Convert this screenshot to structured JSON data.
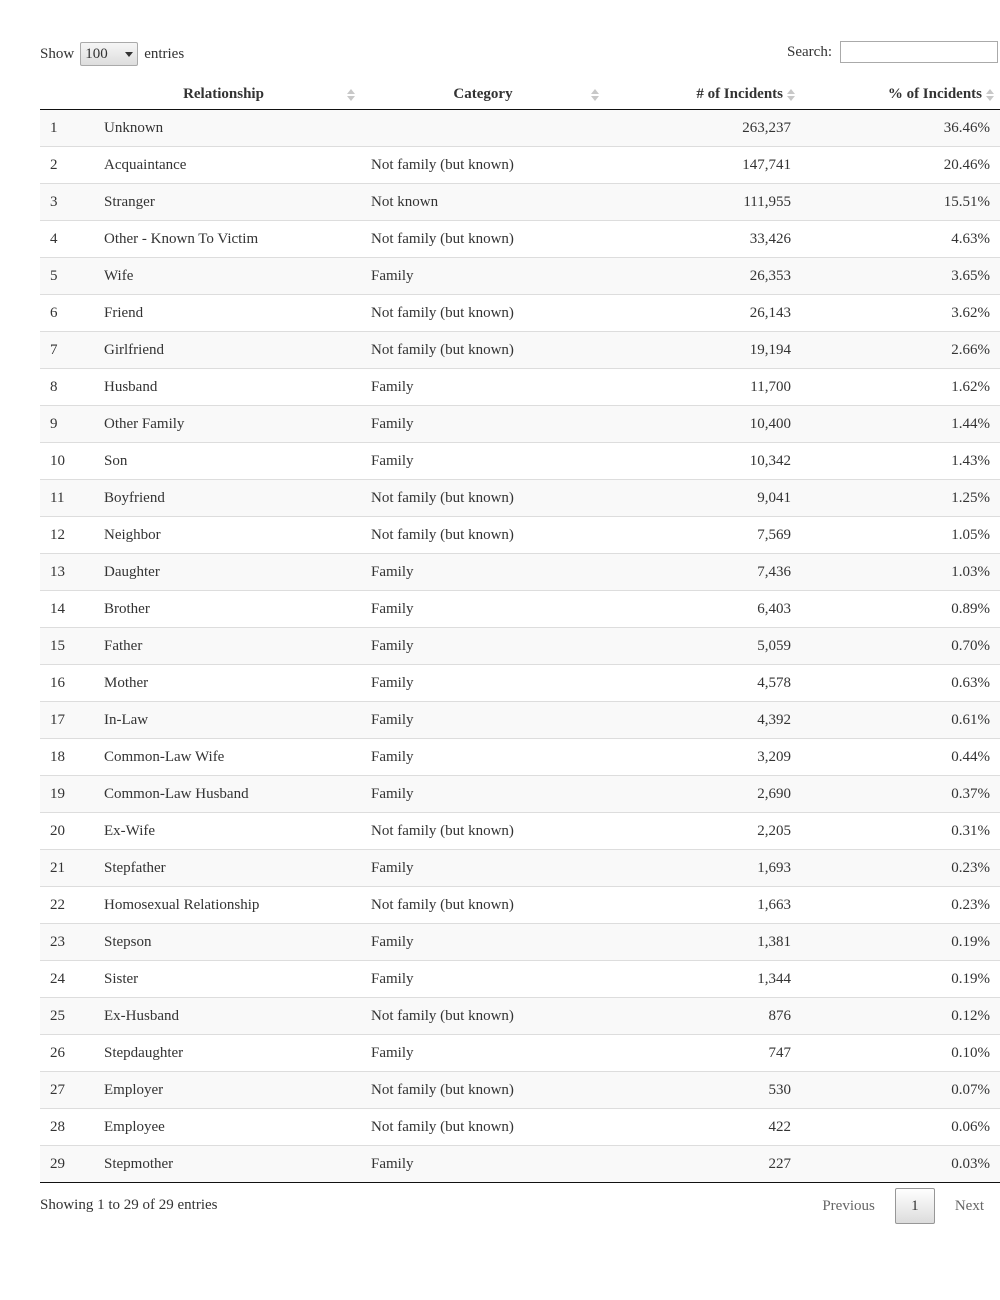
{
  "length": {
    "show_label": "Show",
    "value": "100",
    "entries_label": "entries"
  },
  "search": {
    "label": "Search:",
    "value": "",
    "placeholder": ""
  },
  "table": {
    "columns": [
      "",
      "Relationship",
      "Category",
      "# of Incidents",
      "% of Incidents"
    ],
    "rows": [
      [
        "1",
        "Unknown",
        "",
        "263,237",
        "36.46%"
      ],
      [
        "2",
        "Acquaintance",
        "Not family (but known)",
        "147,741",
        "20.46%"
      ],
      [
        "3",
        "Stranger",
        "Not known",
        "111,955",
        "15.51%"
      ],
      [
        "4",
        "Other - Known To Victim",
        "Not family (but known)",
        "33,426",
        "4.63%"
      ],
      [
        "5",
        "Wife",
        "Family",
        "26,353",
        "3.65%"
      ],
      [
        "6",
        "Friend",
        "Not family (but known)",
        "26,143",
        "3.62%"
      ],
      [
        "7",
        "Girlfriend",
        "Not family (but known)",
        "19,194",
        "2.66%"
      ],
      [
        "8",
        "Husband",
        "Family",
        "11,700",
        "1.62%"
      ],
      [
        "9",
        "Other Family",
        "Family",
        "10,400",
        "1.44%"
      ],
      [
        "10",
        "Son",
        "Family",
        "10,342",
        "1.43%"
      ],
      [
        "11",
        "Boyfriend",
        "Not family (but known)",
        "9,041",
        "1.25%"
      ],
      [
        "12",
        "Neighbor",
        "Not family (but known)",
        "7,569",
        "1.05%"
      ],
      [
        "13",
        "Daughter",
        "Family",
        "7,436",
        "1.03%"
      ],
      [
        "14",
        "Brother",
        "Family",
        "6,403",
        "0.89%"
      ],
      [
        "15",
        "Father",
        "Family",
        "5,059",
        "0.70%"
      ],
      [
        "16",
        "Mother",
        "Family",
        "4,578",
        "0.63%"
      ],
      [
        "17",
        "In-Law",
        "Family",
        "4,392",
        "0.61%"
      ],
      [
        "18",
        "Common-Law Wife",
        "Family",
        "3,209",
        "0.44%"
      ],
      [
        "19",
        "Common-Law Husband",
        "Family",
        "2,690",
        "0.37%"
      ],
      [
        "20",
        "Ex-Wife",
        "Not family (but known)",
        "2,205",
        "0.31%"
      ],
      [
        "21",
        "Stepfather",
        "Family",
        "1,693",
        "0.23%"
      ],
      [
        "22",
        "Homosexual Relationship",
        "Not family (but known)",
        "1,663",
        "0.23%"
      ],
      [
        "23",
        "Stepson",
        "Family",
        "1,381",
        "0.19%"
      ],
      [
        "24",
        "Sister",
        "Family",
        "1,344",
        "0.19%"
      ],
      [
        "25",
        "Ex-Husband",
        "Not family (but known)",
        "876",
        "0.12%"
      ],
      [
        "26",
        "Stepdaughter",
        "Family",
        "747",
        "0.10%"
      ],
      [
        "27",
        "Employer",
        "Not family (but known)",
        "530",
        "0.07%"
      ],
      [
        "28",
        "Employee",
        "Not family (but known)",
        "422",
        "0.06%"
      ],
      [
        "29",
        "Stepmother",
        "Family",
        "227",
        "0.03%"
      ]
    ]
  },
  "footer": {
    "info": "Showing 1 to 29 of 29 entries",
    "previous_label": "Previous",
    "current_page": "1",
    "next_label": "Next"
  },
  "icons": {
    "sort": "sort-both-icon",
    "select_caret": "caret-down-icon"
  }
}
